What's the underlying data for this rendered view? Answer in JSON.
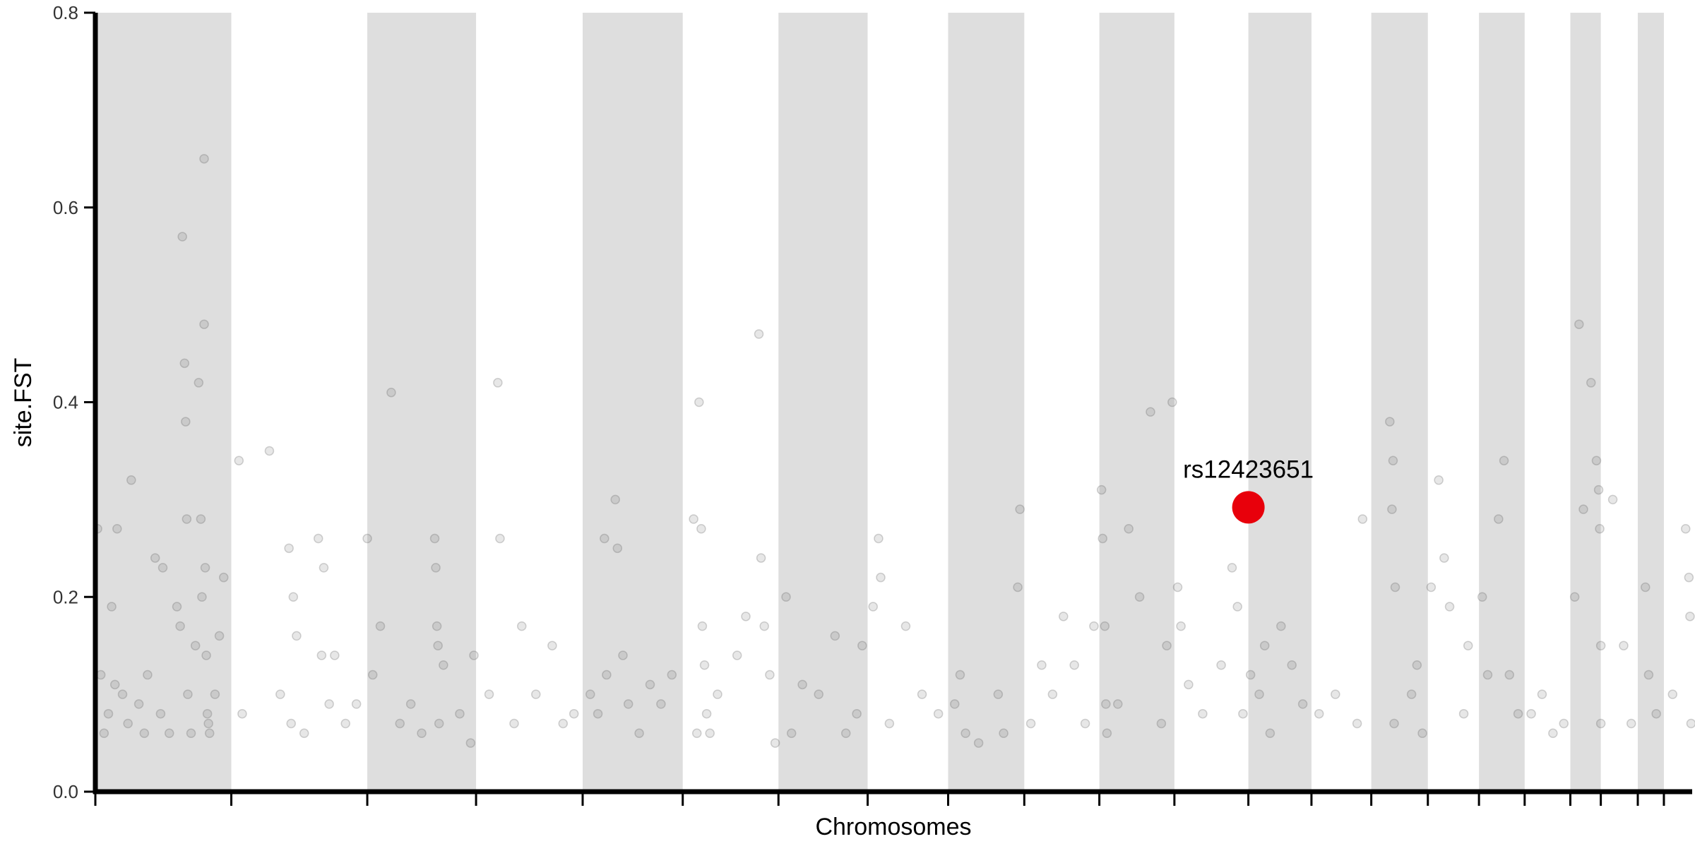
{
  "chart_data": {
    "type": "scatter",
    "xlabel": "Chromosomes",
    "ylabel": "site.FST",
    "xlim": [
      0,
      1468
    ],
    "ylim": [
      0,
      0.8
    ],
    "xticks": [
      0,
      125,
      250,
      350,
      448,
      540,
      628,
      710,
      784,
      854,
      923,
      992,
      1060,
      1118,
      1173,
      1225,
      1272,
      1314,
      1356,
      1384,
      1418,
      1442
    ],
    "yticks": [
      {
        "value": 0,
        "label": "0.0"
      },
      {
        "value": 0.2,
        "label": "0.2"
      },
      {
        "value": 0.4,
        "label": "0.4"
      },
      {
        "value": 0.6,
        "label": "0.6"
      },
      {
        "value": 0.8,
        "label": "0.8"
      }
    ],
    "band_color": "#dedede",
    "grid": false,
    "series": [
      {
        "color": "#555555",
        "x": [
          2,
          5,
          8,
          12,
          15,
          18,
          20,
          25,
          30,
          33,
          40,
          45,
          48,
          55,
          60,
          62,
          68,
          75,
          78,
          80,
          82,
          83,
          84,
          85,
          88,
          92,
          95,
          97,
          98,
          100,
          100,
          101,
          102,
          103,
          104,
          105,
          110,
          114,
          118,
          132,
          135,
          160,
          170,
          178,
          180,
          182,
          185,
          192,
          205,
          208,
          210,
          215,
          220,
          230,
          240,
          250,
          255,
          262,
          272,
          280,
          290,
          300,
          312,
          313,
          314,
          315,
          316,
          320,
          335,
          345,
          348,
          362,
          370,
          372,
          385,
          392,
          405,
          420,
          430,
          440,
          455,
          462,
          468,
          470,
          478,
          480,
          485,
          490,
          500,
          510,
          520,
          530,
          550,
          553,
          555,
          557,
          558,
          560,
          562,
          565,
          572,
          590,
          598,
          610,
          612,
          615,
          620,
          625,
          635,
          640,
          650,
          665,
          680,
          690,
          700,
          705,
          715,
          720,
          722,
          730,
          745,
          760,
          775,
          790,
          795,
          800,
          812,
          830,
          835,
          848,
          850,
          860,
          870,
          880,
          890,
          900,
          910,
          918,
          925,
          926,
          928,
          929,
          930,
          940,
          950,
          960,
          970,
          980,
          985,
          990,
          995,
          998,
          1005,
          1018,
          1035,
          1045,
          1050,
          1055,
          1062,
          1070,
          1075,
          1080,
          1090,
          1100,
          1110,
          1125,
          1140,
          1160,
          1165,
          1190,
          1192,
          1193,
          1194,
          1195,
          1210,
          1215,
          1220,
          1228,
          1235,
          1240,
          1245,
          1258,
          1262,
          1275,
          1280,
          1290,
          1295,
          1300,
          1308,
          1320,
          1330,
          1340,
          1350,
          1360,
          1364,
          1368,
          1375,
          1380,
          1382,
          1383,
          1384,
          1384,
          1395,
          1405,
          1412,
          1425,
          1428,
          1435,
          1450,
          1462,
          1465,
          1466,
          1467
        ],
        "values": [
          0.27,
          0.12,
          0.06,
          0.08,
          0.19,
          0.11,
          0.27,
          0.1,
          0.07,
          0.32,
          0.09,
          0.06,
          0.12,
          0.24,
          0.08,
          0.23,
          0.06,
          0.19,
          0.17,
          0.57,
          0.44,
          0.38,
          0.28,
          0.1,
          0.06,
          0.15,
          0.42,
          0.28,
          0.2,
          0.65,
          0.48,
          0.23,
          0.14,
          0.08,
          0.07,
          0.06,
          0.1,
          0.16,
          0.22,
          0.34,
          0.08,
          0.35,
          0.1,
          0.25,
          0.07,
          0.2,
          0.16,
          0.06,
          0.26,
          0.14,
          0.23,
          0.09,
          0.14,
          0.07,
          0.09,
          0.26,
          0.12,
          0.17,
          0.41,
          0.07,
          0.09,
          0.06,
          0.26,
          0.23,
          0.17,
          0.15,
          0.07,
          0.13,
          0.08,
          0.05,
          0.14,
          0.1,
          0.42,
          0.26,
          0.07,
          0.17,
          0.1,
          0.15,
          0.07,
          0.08,
          0.1,
          0.08,
          0.26,
          0.12,
          0.3,
          0.25,
          0.14,
          0.09,
          0.06,
          0.11,
          0.09,
          0.12,
          0.28,
          0.06,
          0.4,
          0.27,
          0.17,
          0.13,
          0.08,
          0.06,
          0.1,
          0.14,
          0.18,
          0.47,
          0.24,
          0.17,
          0.12,
          0.05,
          0.2,
          0.06,
          0.11,
          0.1,
          0.16,
          0.06,
          0.08,
          0.15,
          0.19,
          0.26,
          0.22,
          0.07,
          0.17,
          0.1,
          0.08,
          0.09,
          0.12,
          0.06,
          0.05,
          0.1,
          0.06,
          0.21,
          0.29,
          0.07,
          0.13,
          0.1,
          0.18,
          0.13,
          0.07,
          0.17,
          0.31,
          0.26,
          0.17,
          0.09,
          0.06,
          0.09,
          0.27,
          0.2,
          0.39,
          0.07,
          0.15,
          0.4,
          0.21,
          0.17,
          0.11,
          0.08,
          0.13,
          0.23,
          0.19,
          0.08,
          0.12,
          0.1,
          0.15,
          0.06,
          0.17,
          0.13,
          0.09,
          0.08,
          0.1,
          0.07,
          0.28,
          0.38,
          0.29,
          0.34,
          0.07,
          0.21,
          0.1,
          0.13,
          0.06,
          0.21,
          0.32,
          0.24,
          0.19,
          0.08,
          0.15,
          0.2,
          0.12,
          0.28,
          0.34,
          0.12,
          0.08,
          0.08,
          0.1,
          0.06,
          0.07,
          0.2,
          0.48,
          0.29,
          0.42,
          0.34,
          0.31,
          0.27,
          0.15,
          0.07,
          0.3,
          0.15,
          0.07,
          0.21,
          0.12,
          0.08,
          0.1,
          0.27,
          0.22,
          0.18,
          0.07
        ]
      }
    ],
    "annotations": [
      {
        "text": "rs12423651",
        "x": 1060,
        "y": 0.292,
        "color": "#e8000b"
      }
    ]
  }
}
